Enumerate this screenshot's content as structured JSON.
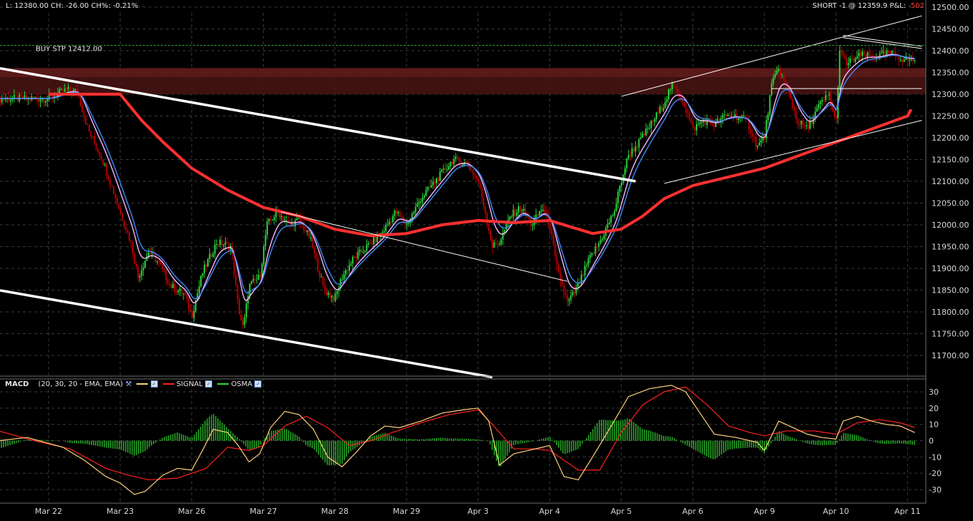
{
  "status_left": "L: 12380.00 CH: -26.00 CH%: -0.21%",
  "position": {
    "label": "SHORT -1 @ 12359.9 P&L:",
    "pnl": "-502",
    "pnl_color": "#ff3b3b"
  },
  "order_label": "BUY STP 12412.00",
  "colors": {
    "background": "#000000",
    "grid": "#3a3a3a",
    "panel_border": "#6b6b6b",
    "zone": "#4a1414",
    "ema_slow": "#ff3030",
    "ema_fast_blue": "#3b8cff",
    "ema_fast_pink": "#ffb6ff",
    "candle_up": "#2bd23b",
    "candle_down": "#b30000",
    "macd": "#ffd27a",
    "signal": "#ff2020",
    "osma": "#33dd33",
    "trendline": "#ffffff"
  },
  "chart_data": [
    {
      "type": "candlestick",
      "title": "",
      "x_labels": [
        "Mar 22",
        "Mar 23",
        "Mar 26",
        "Mar 27",
        "Mar 28",
        "Mar 29",
        "Apr 3",
        "Apr 4",
        "Apr 5",
        "Apr 6",
        "Apr 9",
        "Apr 10",
        "Apr 11"
      ],
      "ylim": [
        11650,
        12500
      ],
      "y_ticks": [
        11700,
        11750,
        11800,
        11850,
        11900,
        11950,
        12000,
        12050,
        12100,
        12150,
        12200,
        12250,
        12300,
        12350,
        12400,
        12450,
        12500
      ],
      "grid": true,
      "close_path": [
        [
          0.0,
          12290
        ],
        [
          0.25,
          12310
        ],
        [
          0.4,
          12305
        ],
        [
          0.55,
          12220
        ],
        [
          0.75,
          12150
        ],
        [
          0.9,
          12080
        ],
        [
          1.0,
          12030
        ],
        [
          1.15,
          11960
        ],
        [
          1.25,
          11880
        ],
        [
          1.4,
          11940
        ],
        [
          1.55,
          11910
        ],
        [
          1.7,
          11860
        ],
        [
          1.9,
          11840
        ],
        [
          2.0,
          11790
        ],
        [
          2.15,
          11890
        ],
        [
          2.35,
          11960
        ],
        [
          2.55,
          11950
        ],
        [
          2.65,
          11810
        ],
        [
          2.72,
          11760
        ],
        [
          2.8,
          11860
        ],
        [
          2.95,
          11880
        ],
        [
          3.05,
          12000
        ],
        [
          3.2,
          12030
        ],
        [
          3.35,
          12000
        ],
        [
          3.5,
          12010
        ],
        [
          3.65,
          11970
        ],
        [
          3.85,
          11850
        ],
        [
          4.0,
          11830
        ],
        [
          4.1,
          11880
        ],
        [
          4.25,
          11920
        ],
        [
          4.45,
          11950
        ],
        [
          4.65,
          11980
        ],
        [
          4.85,
          12030
        ],
        [
          5.0,
          12000
        ],
        [
          5.2,
          12060
        ],
        [
          5.45,
          12110
        ],
        [
          5.65,
          12150
        ],
        [
          5.85,
          12140
        ],
        [
          6.0,
          12100
        ],
        [
          6.1,
          12030
        ],
        [
          6.2,
          11950
        ],
        [
          6.3,
          11960
        ],
        [
          6.45,
          12020
        ],
        [
          6.6,
          12040
        ],
        [
          6.75,
          12000
        ],
        [
          6.9,
          12040
        ],
        [
          7.0,
          12000
        ],
        [
          7.1,
          11900
        ],
        [
          7.25,
          11820
        ],
        [
          7.4,
          11860
        ],
        [
          7.55,
          11920
        ],
        [
          7.7,
          11960
        ],
        [
          7.9,
          12030
        ],
        [
          8.0,
          12100
        ],
        [
          8.1,
          12160
        ],
        [
          8.25,
          12190
        ],
        [
          8.45,
          12240
        ],
        [
          8.6,
          12280
        ],
        [
          8.7,
          12320
        ],
        [
          8.85,
          12290
        ],
        [
          9.0,
          12220
        ],
        [
          9.15,
          12240
        ],
        [
          9.3,
          12230
        ],
        [
          9.45,
          12250
        ],
        [
          9.6,
          12250
        ],
        [
          9.75,
          12240
        ],
        [
          9.9,
          12180
        ],
        [
          10.0,
          12200
        ],
        [
          10.1,
          12320
        ],
        [
          10.2,
          12360
        ],
        [
          10.35,
          12300
        ],
        [
          10.45,
          12240
        ],
        [
          10.6,
          12220
        ],
        [
          10.75,
          12270
        ],
        [
          10.9,
          12300
        ],
        [
          11.0,
          12230
        ],
        [
          11.05,
          12400
        ],
        [
          11.15,
          12370
        ],
        [
          11.35,
          12390
        ],
        [
          11.55,
          12385
        ],
        [
          11.75,
          12395
        ],
        [
          11.95,
          12380
        ],
        [
          12.1,
          12380
        ]
      ],
      "series": [
        {
          "name": "",
          "values": [
            [
              0.0,
              12300
            ],
            [
              1.0,
              12300
            ],
            [
              1.3,
              12240
            ],
            [
              1.6,
              12190
            ],
            [
              2.0,
              12130
            ],
            [
              2.5,
              12080
            ],
            [
              3.0,
              12040
            ],
            [
              3.5,
              12020
            ],
            [
              4.0,
              11990
            ],
            [
              4.5,
              11975
            ],
            [
              5.0,
              11980
            ],
            [
              5.5,
              12000
            ],
            [
              6.0,
              12010
            ],
            [
              6.5,
              12005
            ],
            [
              7.0,
              12010
            ],
            [
              7.3,
              11995
            ],
            [
              7.6,
              11980
            ],
            [
              8.0,
              11990
            ],
            [
              8.3,
              12020
            ],
            [
              8.6,
              12060
            ],
            [
              9.0,
              12090
            ],
            [
              9.5,
              12110
            ],
            [
              10.0,
              12130
            ],
            [
              10.5,
              12160
            ],
            [
              11.0,
              12190
            ],
            [
              11.5,
              12220
            ],
            [
              12.0,
              12250
            ],
            [
              12.05,
              12265
            ]
          ]
        }
      ],
      "trendlines": [
        {
          "from": [
            -0.7,
            12360
          ],
          "to": [
            8.2,
            12100
          ]
        },
        {
          "from": [
            -0.7,
            11850
          ],
          "to": [
            6.2,
            11650
          ]
        },
        {
          "from": [
            3.25,
            12030
          ],
          "to": [
            7.25,
            11870
          ]
        },
        {
          "from": [
            8.0,
            12295
          ],
          "to": [
            12.2,
            12480
          ]
        },
        {
          "from": [
            8.6,
            12095
          ],
          "to": [
            12.2,
            12240
          ]
        },
        {
          "from": [
            11.1,
            12435
          ],
          "to": [
            12.2,
            12410
          ]
        },
        {
          "from": [
            11.1,
            12430
          ],
          "to": [
            12.2,
            12405
          ]
        },
        {
          "from": [
            10.1,
            12313
          ],
          "to": [
            12.2,
            12313
          ]
        }
      ],
      "zone": {
        "from": 12300,
        "to": 12360
      },
      "order_level": 12412
    },
    {
      "type": "line",
      "title": "MACD",
      "params": "(20, 30, 20 - EMA, EMA)",
      "legend": [
        "SIGNAL",
        "OSMA"
      ],
      "ylim": [
        -36,
        36
      ],
      "y_ticks": [
        -30,
        -20,
        -10,
        0,
        10,
        20,
        30
      ],
      "series": [
        {
          "name": "",
          "values": [
            [
              -0.7,
              0
            ],
            [
              -0.3,
              2
            ],
            [
              0.2,
              -4
            ],
            [
              0.5,
              -12
            ],
            [
              0.8,
              -22
            ],
            [
              1.0,
              -26
            ],
            [
              1.2,
              -33
            ],
            [
              1.35,
              -31
            ],
            [
              1.6,
              -21
            ],
            [
              1.8,
              -17
            ],
            [
              2.0,
              -18
            ],
            [
              2.15,
              -6
            ],
            [
              2.3,
              7
            ],
            [
              2.5,
              5
            ],
            [
              2.65,
              -3
            ],
            [
              2.8,
              -13
            ],
            [
              2.95,
              -8
            ],
            [
              3.1,
              8
            ],
            [
              3.3,
              18
            ],
            [
              3.5,
              16
            ],
            [
              3.7,
              7
            ],
            [
              3.9,
              -10
            ],
            [
              4.1,
              -16
            ],
            [
              4.3,
              -7
            ],
            [
              4.5,
              3
            ],
            [
              4.7,
              9
            ],
            [
              4.9,
              8
            ],
            [
              5.2,
              12
            ],
            [
              5.5,
              17
            ],
            [
              5.8,
              19
            ],
            [
              6.0,
              20
            ],
            [
              6.15,
              12
            ],
            [
              6.3,
              -15
            ],
            [
              6.5,
              -8
            ],
            [
              6.7,
              -6
            ],
            [
              6.9,
              -4
            ],
            [
              7.0,
              -3
            ],
            [
              7.2,
              -22
            ],
            [
              7.4,
              -24
            ],
            [
              7.6,
              -10
            ],
            [
              7.9,
              12
            ],
            [
              8.1,
              27
            ],
            [
              8.4,
              32
            ],
            [
              8.7,
              34
            ],
            [
              8.9,
              30
            ],
            [
              9.1,
              17
            ],
            [
              9.3,
              4
            ],
            [
              9.6,
              2
            ],
            [
              9.9,
              -1
            ],
            [
              10.0,
              -6
            ],
            [
              10.2,
              12
            ],
            [
              10.4,
              8
            ],
            [
              10.6,
              4
            ],
            [
              10.8,
              2
            ],
            [
              11.0,
              1
            ],
            [
              11.1,
              12
            ],
            [
              11.3,
              15
            ],
            [
              11.5,
              12
            ],
            [
              11.7,
              10
            ],
            [
              11.9,
              9
            ],
            [
              12.1,
              5
            ]
          ]
        },
        {
          "name": "SIGNAL",
          "values": [
            [
              -0.7,
              6
            ],
            [
              -0.2,
              0
            ],
            [
              0.3,
              -5
            ],
            [
              0.8,
              -17
            ],
            [
              1.1,
              -21
            ],
            [
              1.4,
              -24
            ],
            [
              1.8,
              -23
            ],
            [
              2.2,
              -17
            ],
            [
              2.5,
              -4
            ],
            [
              2.8,
              -6
            ],
            [
              3.0,
              -3
            ],
            [
              3.3,
              9
            ],
            [
              3.6,
              15
            ],
            [
              3.9,
              8
            ],
            [
              4.2,
              -3
            ],
            [
              4.5,
              0
            ],
            [
              4.8,
              5
            ],
            [
              5.2,
              11
            ],
            [
              5.6,
              16
            ],
            [
              6.0,
              19
            ],
            [
              6.2,
              10
            ],
            [
              6.5,
              -5
            ],
            [
              6.8,
              -5
            ],
            [
              7.0,
              -6
            ],
            [
              7.4,
              -18
            ],
            [
              7.7,
              -18
            ],
            [
              8.0,
              5
            ],
            [
              8.3,
              22
            ],
            [
              8.6,
              30
            ],
            [
              8.9,
              33
            ],
            [
              9.2,
              22
            ],
            [
              9.5,
              9
            ],
            [
              9.8,
              5
            ],
            [
              10.0,
              3
            ],
            [
              10.3,
              6
            ],
            [
              10.7,
              6
            ],
            [
              11.0,
              4
            ],
            [
              11.3,
              11
            ],
            [
              11.6,
              13
            ],
            [
              11.9,
              11
            ],
            [
              12.1,
              8
            ]
          ]
        }
      ]
    }
  ]
}
